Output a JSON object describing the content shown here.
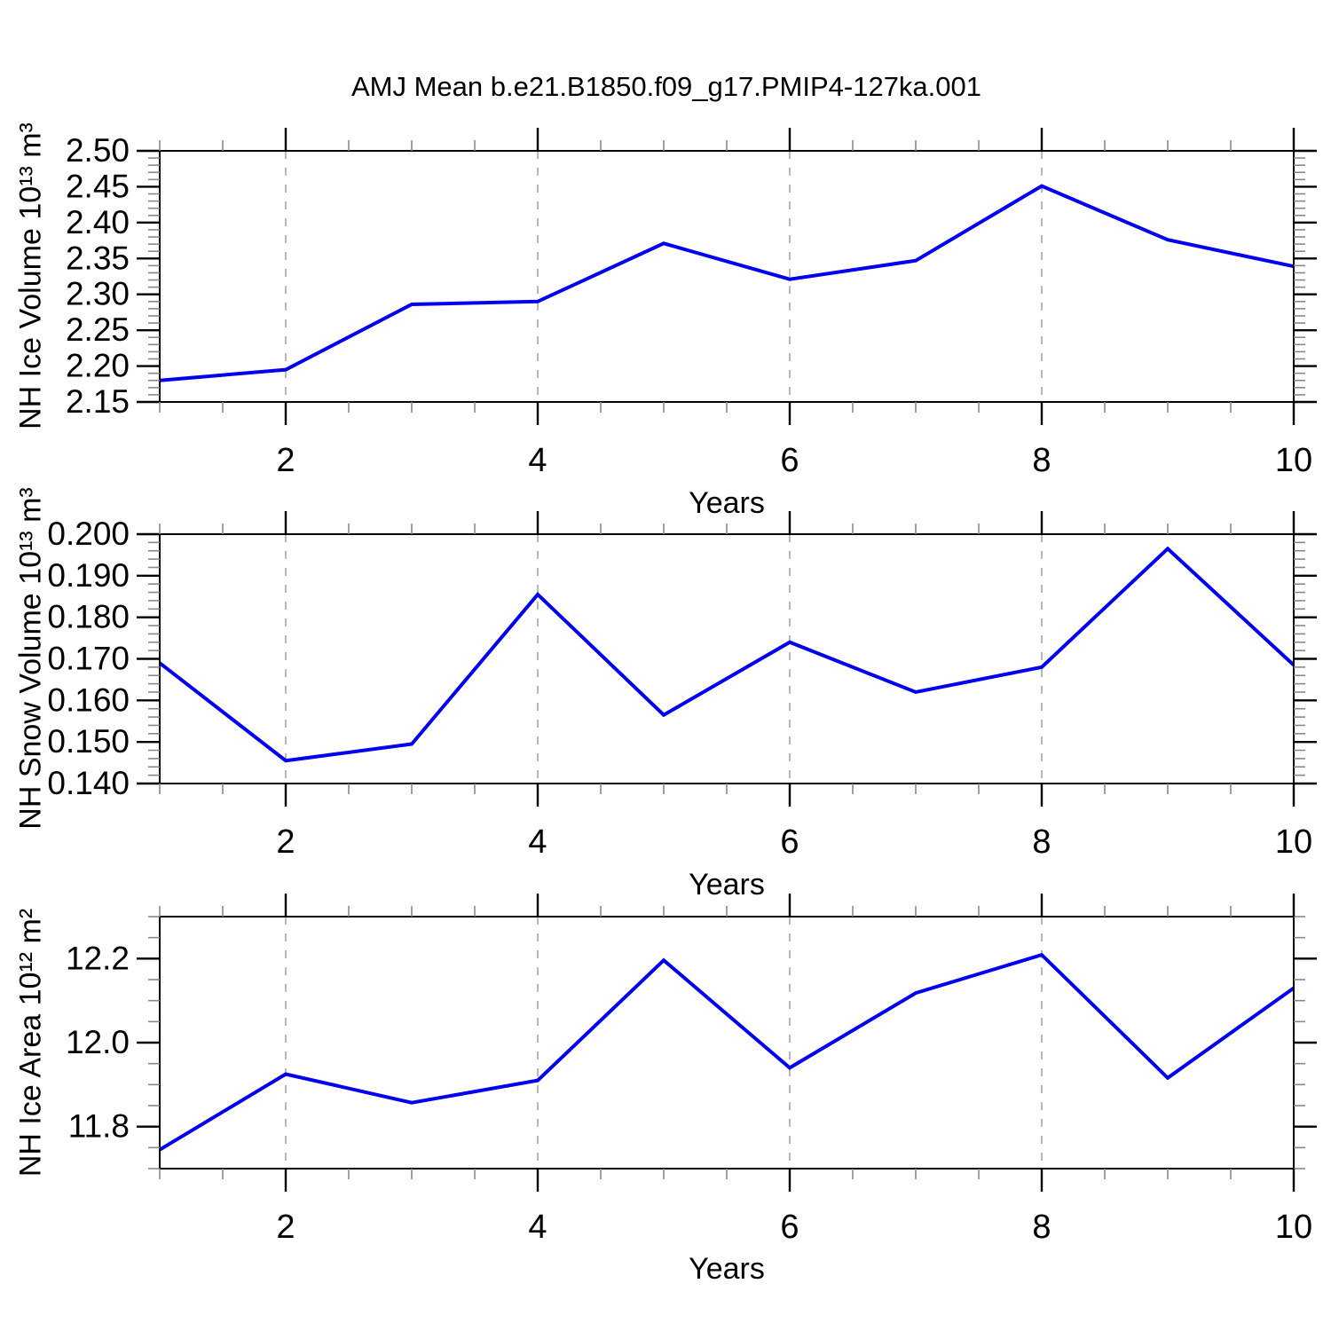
{
  "figure": {
    "title": "AMJ Mean b.e21.B1850.f09_g17.PMIP4-127ka.001",
    "background_color": "#ffffff",
    "line_color": "#0000ee",
    "grid_color": "#999999",
    "axis_color": "#000000",
    "minor_tick_color": "#888888"
  },
  "chart_data": [
    {
      "type": "line",
      "title": "AMJ Mean b.e21.B1850.f09_g17.PMIP4-127ka.001",
      "ylabel": "NH Ice Volume 10¹³ m³",
      "xlabel": "Years",
      "x": [
        1,
        2,
        3,
        4,
        5,
        6,
        7,
        8,
        9,
        10
      ],
      "values": [
        2.18,
        2.195,
        2.286,
        2.29,
        2.371,
        2.321,
        2.347,
        2.451,
        2.376,
        2.339
      ],
      "xlim": [
        1,
        10
      ],
      "ylim": [
        2.15,
        2.5
      ],
      "y_ticks": [
        {
          "v": 2.15,
          "label": "2.15"
        },
        {
          "v": 2.2,
          "label": "2.20"
        },
        {
          "v": 2.25,
          "label": "2.25"
        },
        {
          "v": 2.3,
          "label": "2.30"
        },
        {
          "v": 2.35,
          "label": "2.35"
        },
        {
          "v": 2.4,
          "label": "2.40"
        },
        {
          "v": 2.45,
          "label": "2.45"
        },
        {
          "v": 2.5,
          "label": "2.50"
        }
      ],
      "y_minor_step": 0.01,
      "x_ticks": [
        {
          "v": 2,
          "label": "2"
        },
        {
          "v": 4,
          "label": "4"
        },
        {
          "v": 6,
          "label": "6"
        },
        {
          "v": 8,
          "label": "8"
        },
        {
          "v": 10,
          "label": "10"
        }
      ],
      "x_minor_step": 0.5,
      "grid_x": [
        2,
        4,
        6,
        8
      ],
      "grid_style": "vertical-dashed",
      "legend": null
    },
    {
      "type": "line",
      "title": "",
      "ylabel": "NH Snow Volume 10¹³ m³",
      "xlabel": "Years",
      "x": [
        1,
        2,
        3,
        4,
        5,
        6,
        7,
        8,
        9,
        10
      ],
      "values": [
        0.169,
        0.1455,
        0.1495,
        0.1855,
        0.1565,
        0.174,
        0.162,
        0.168,
        0.1965,
        0.1685
      ],
      "xlim": [
        1,
        10
      ],
      "ylim": [
        0.14,
        0.2
      ],
      "y_ticks": [
        {
          "v": 0.14,
          "label": "0.140"
        },
        {
          "v": 0.15,
          "label": "0.150"
        },
        {
          "v": 0.16,
          "label": "0.160"
        },
        {
          "v": 0.17,
          "label": "0.170"
        },
        {
          "v": 0.18,
          "label": "0.180"
        },
        {
          "v": 0.19,
          "label": "0.190"
        },
        {
          "v": 0.2,
          "label": "0.200"
        }
      ],
      "y_minor_step": 0.002,
      "x_ticks": [
        {
          "v": 2,
          "label": "2"
        },
        {
          "v": 4,
          "label": "4"
        },
        {
          "v": 6,
          "label": "6"
        },
        {
          "v": 8,
          "label": "8"
        },
        {
          "v": 10,
          "label": "10"
        }
      ],
      "x_minor_step": 0.5,
      "grid_x": [
        2,
        4,
        6,
        8
      ],
      "grid_style": "vertical-dashed",
      "legend": null
    },
    {
      "type": "line",
      "title": "",
      "ylabel": "NH Ice Area 10¹² m²",
      "xlabel": "Years",
      "x": [
        1,
        2,
        3,
        4,
        5,
        6,
        7,
        8,
        9,
        10
      ],
      "values": [
        11.745,
        11.925,
        11.857,
        11.91,
        12.196,
        11.94,
        12.118,
        12.209,
        11.916,
        12.13
      ],
      "xlim": [
        1,
        10
      ],
      "ylim": [
        11.7,
        12.3
      ],
      "y_ticks": [
        {
          "v": 11.8,
          "label": "11.8"
        },
        {
          "v": 12.0,
          "label": "12.0"
        },
        {
          "v": 12.2,
          "label": "12.2"
        }
      ],
      "y_minor_step": 0.05,
      "x_ticks": [
        {
          "v": 2,
          "label": "2"
        },
        {
          "v": 4,
          "label": "4"
        },
        {
          "v": 6,
          "label": "6"
        },
        {
          "v": 8,
          "label": "8"
        },
        {
          "v": 10,
          "label": "10"
        }
      ],
      "x_minor_step": 0.5,
      "grid_x": [
        2,
        4,
        6,
        8
      ],
      "grid_style": "vertical-dashed",
      "legend": null
    }
  ]
}
